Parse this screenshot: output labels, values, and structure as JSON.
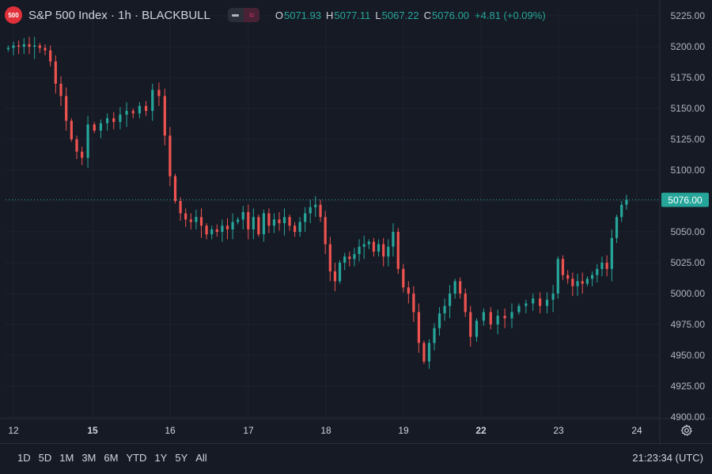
{
  "header": {
    "logo_text": "500",
    "title": "S&P 500 Index · 1h · BLACKBULL",
    "ohlc": [
      {
        "key": "O",
        "value": "5071.93"
      },
      {
        "key": "H",
        "value": "5077.11"
      },
      {
        "key": "L",
        "value": "5067.22"
      },
      {
        "key": "C",
        "value": "5076.00"
      }
    ],
    "change": "+4.81 (+0.09%)"
  },
  "timeframes": [
    "1D",
    "5D",
    "1M",
    "3M",
    "6M",
    "YTD",
    "1Y",
    "5Y",
    "All"
  ],
  "clock": "21:23:34 (UTC)",
  "colors": {
    "up": "#26a69a",
    "down": "#ef5350",
    "background": "#161a25",
    "grid": "#1f2330",
    "axis_text": "#b2b5be"
  },
  "chart_data": {
    "type": "candlestick",
    "ylim": [
      4900,
      5225
    ],
    "yticks": [
      4900,
      4925,
      4950,
      4975,
      5000,
      5025,
      5050,
      5075,
      5100,
      5125,
      5150,
      5175,
      5200,
      5225
    ],
    "ytick_labels": [
      "4900.00",
      "4925.00",
      "4950.00",
      "4975.00",
      "5000.00",
      "5025.00",
      "5050.00",
      "5075.00",
      "5100.00",
      "5125.00",
      "5150.00",
      "5175.00",
      "5200.00",
      "5225.00"
    ],
    "xticks": [
      "12",
      "15",
      "16",
      "17",
      "18",
      "19",
      "22",
      "23",
      "24"
    ],
    "bold_xticks": [
      "15",
      "22"
    ],
    "last_price": 5076.0,
    "last_price_label": "5076.00",
    "series": [
      {
        "day": "12",
        "close": [
          5199,
          5201,
          5200,
          5202,
          5200,
          5201,
          5199,
          5197,
          5188,
          5170,
          5160,
          5140,
          5125,
          5115,
          5110
        ]
      },
      {
        "day": "15",
        "close": [
          5137,
          5132,
          5138,
          5142,
          5139,
          5145,
          5148,
          5146,
          5152,
          5148,
          5165,
          5160
        ]
      },
      {
        "day": "16",
        "close": [
          5128,
          5095,
          5075,
          5065,
          5060,
          5058,
          5062,
          5055,
          5048,
          5052,
          5050,
          5055,
          5052,
          5058,
          5060
        ]
      },
      {
        "day": "17",
        "close": [
          5066,
          5052,
          5062,
          5048,
          5065,
          5055,
          5060,
          5057,
          5062,
          5055,
          5050,
          5058,
          5065,
          5070,
          5072
        ]
      },
      {
        "day": "18",
        "close": [
          5062,
          5040,
          5018,
          5010,
          5025,
          5030,
          5028,
          5032,
          5038,
          5040,
          5042,
          5034,
          5040,
          5030,
          5038,
          5050
        ]
      },
      {
        "day": "19",
        "close": [
          5020,
          5005,
          5000,
          4985,
          4960,
          4945,
          4960,
          4972,
          4984,
          4990,
          5000,
          5010,
          5000,
          4985,
          4965
        ]
      },
      {
        "day": "22",
        "close": [
          4978,
          4985,
          4975,
          4982,
          4980,
          4985,
          4990,
          4992,
          4996,
          4990,
          4995
        ]
      },
      {
        "day": "23",
        "close": [
          5000,
          5028,
          5015,
          5012,
          5006,
          5010,
          5008,
          5012,
          5015,
          5020,
          5025,
          5020,
          5045,
          5062,
          5072,
          5076
        ]
      }
    ]
  }
}
